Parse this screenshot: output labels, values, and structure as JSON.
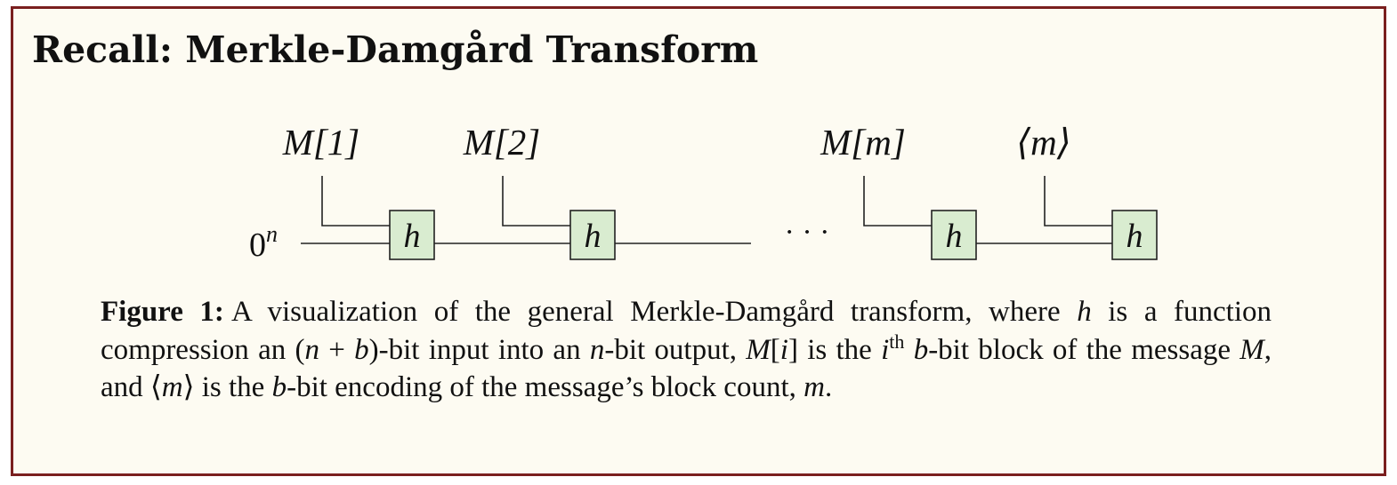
{
  "title": "Recall: Merkle-Damgård Transform",
  "diagram": {
    "iv_label_base": "0",
    "iv_label_sup": "n",
    "compress_label": "h",
    "ellipsis": "· · ·",
    "inputs": [
      {
        "label": "M[1]"
      },
      {
        "label": "M[2]"
      },
      {
        "label": "M[m]"
      },
      {
        "label": "⟨m⟩"
      }
    ]
  },
  "caption": {
    "label": "Figure 1:",
    "parts": {
      "t1": "A visualization of the general Merkle-Damgård transform, where ",
      "h": "h",
      "t2": " is a function compression an (",
      "nb": "n",
      "plus": " + ",
      "b1": "b",
      "t3": ")-bit input into an ",
      "n2": "n",
      "t4": "-bit output, ",
      "mi": "M",
      "lb": "[",
      "i": "i",
      "rb": "]",
      "t5": " is the ",
      "i2": "i",
      "th": "th",
      "sp": " ",
      "b2": "b",
      "t6": "-bit block of the message ",
      "M": "M",
      "t7": ", and ⟨",
      "m1": "m",
      "t8": "⟩ is the ",
      "b3": "b",
      "t9": "-bit encoding of the message’s block count, ",
      "m2": "m",
      "t10": "."
    }
  },
  "colors": {
    "frame_border": "#7a1f1f",
    "background": "#fdfbf2",
    "box_fill": "#d9ecd0",
    "line": "#222222"
  }
}
